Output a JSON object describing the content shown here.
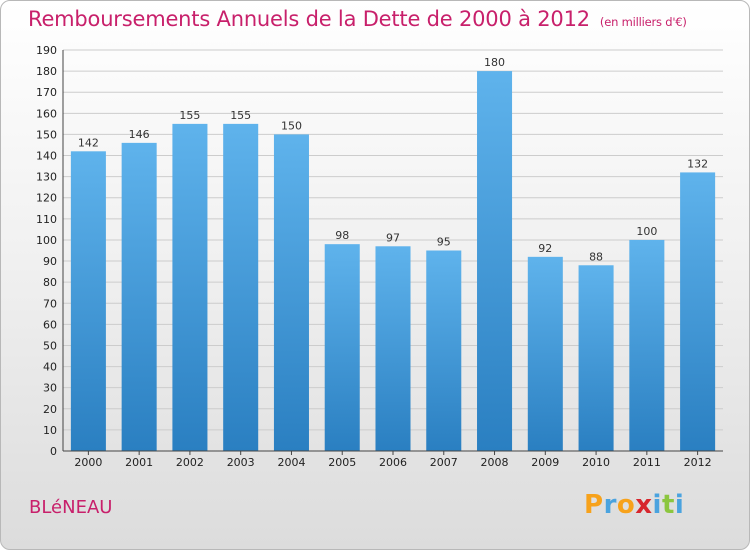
{
  "page": {
    "title": "Remboursements Annuels de la Dette de 2000 à 2012",
    "subtitle": "(en milliers d'€)",
    "commune": "BLéNEAU",
    "logo": {
      "letters": [
        "P",
        "r",
        "o",
        "x",
        "i",
        "t",
        "i"
      ],
      "colors": [
        "#f7a21b",
        "#4aa3df",
        "#f7a21b",
        "#d7262d",
        "#4aa3df",
        "#8cc63f",
        "#4aa3df"
      ]
    }
  },
  "colors": {
    "title": "#c8206b",
    "bar_top": "#5fb3ec",
    "bar_bottom": "#2a7fc1",
    "grid": "#cccccc"
  },
  "chart_data": {
    "type": "bar",
    "title": "Remboursements Annuels de la Dette de 2000 à 2012",
    "subtitle": "(en milliers d'€)",
    "categories": [
      "2000",
      "2001",
      "2002",
      "2003",
      "2004",
      "2005",
      "2006",
      "2007",
      "2008",
      "2009",
      "2010",
      "2011",
      "2012"
    ],
    "values": [
      142,
      146,
      155,
      155,
      150,
      98,
      97,
      95,
      180,
      92,
      88,
      100,
      132
    ],
    "ylim": [
      0,
      190
    ],
    "ytick_step": 10,
    "grid": true,
    "data_labels": true
  }
}
